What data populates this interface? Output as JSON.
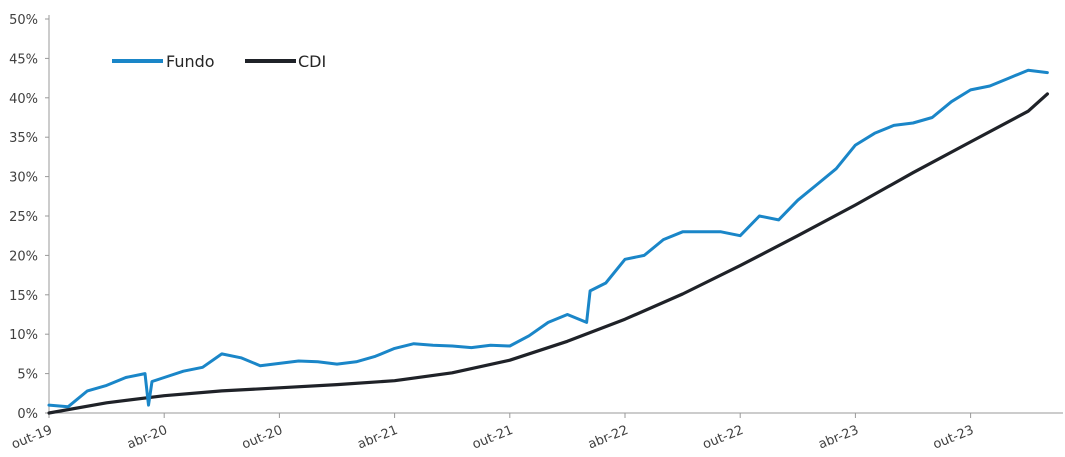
{
  "chart_data": {
    "type": "line",
    "title": "",
    "xlabel": "",
    "ylabel": "",
    "ylim": [
      0,
      50
    ],
    "y_ticks": [
      "0%",
      "5%",
      "10%",
      "15%",
      "20%",
      "25%",
      "30%",
      "35%",
      "40%",
      "45%",
      "50%"
    ],
    "x_ticks": [
      "out-19",
      "abr-20",
      "out-20",
      "abr-21",
      "out-21",
      "abr-22",
      "out-22",
      "abr-23",
      "out-23"
    ],
    "x_range": [
      "out-19",
      "fev-24"
    ],
    "grid": false,
    "legend_position": "top-left",
    "colors": {
      "Fundo": "#1a86c8",
      "CDI": "#1f2228"
    },
    "series": [
      {
        "name": "Fundo",
        "x": [
          "out-19",
          "nov-19",
          "dez-19",
          "jan-20",
          "fev-20",
          "mar-20",
          "mar-20",
          "mar-20",
          "abr-20",
          "mai-20",
          "jun-20",
          "jul-20",
          "ago-20",
          "set-20",
          "out-20",
          "nov-20",
          "dez-20",
          "jan-21",
          "fev-21",
          "mar-21",
          "abr-21",
          "mai-21",
          "jun-21",
          "jul-21",
          "ago-21",
          "set-21",
          "out-21",
          "nov-21",
          "dez-21",
          "jan-22",
          "fev-22",
          "fev-22",
          "mar-22",
          "abr-22",
          "mai-22",
          "jun-22",
          "jul-22",
          "ago-22",
          "set-22",
          "out-22",
          "nov-22",
          "dez-22",
          "jan-23",
          "fev-23",
          "mar-23",
          "abr-23",
          "mai-23",
          "jun-23",
          "jul-23",
          "ago-23",
          "set-23",
          "out-23",
          "nov-23",
          "dez-23",
          "jan-24",
          "fev-24"
        ],
        "values": [
          1.0,
          0.8,
          2.8,
          3.5,
          4.5,
          5.0,
          1.0,
          4.0,
          4.5,
          5.3,
          5.8,
          7.5,
          7.0,
          6.0,
          6.3,
          6.6,
          6.5,
          6.2,
          6.5,
          7.2,
          8.2,
          8.8,
          8.6,
          8.5,
          8.3,
          8.6,
          8.5,
          9.8,
          11.5,
          12.5,
          11.5,
          15.5,
          16.5,
          19.5,
          20.0,
          22.0,
          23.0,
          23.0,
          23.0,
          22.5,
          25.0,
          24.5,
          27.0,
          29.0,
          31.0,
          34.0,
          35.5,
          36.5,
          36.8,
          37.5,
          39.5,
          41.0,
          41.5,
          42.5,
          43.5,
          43.2
        ]
      },
      {
        "name": "CDI",
        "x": [
          "out-19",
          "jan-20",
          "abr-20",
          "jul-20",
          "out-20",
          "jan-21",
          "abr-21",
          "jul-21",
          "out-21",
          "jan-22",
          "abr-22",
          "jul-22",
          "out-22",
          "jan-23",
          "abr-23",
          "jul-23",
          "out-23",
          "jan-24",
          "fev-24"
        ],
        "values": [
          0.0,
          1.3,
          2.2,
          2.8,
          3.2,
          3.6,
          4.1,
          5.1,
          6.7,
          9.1,
          11.9,
          15.1,
          18.7,
          22.5,
          26.4,
          30.5,
          34.4,
          38.3,
          40.5
        ]
      }
    ]
  }
}
